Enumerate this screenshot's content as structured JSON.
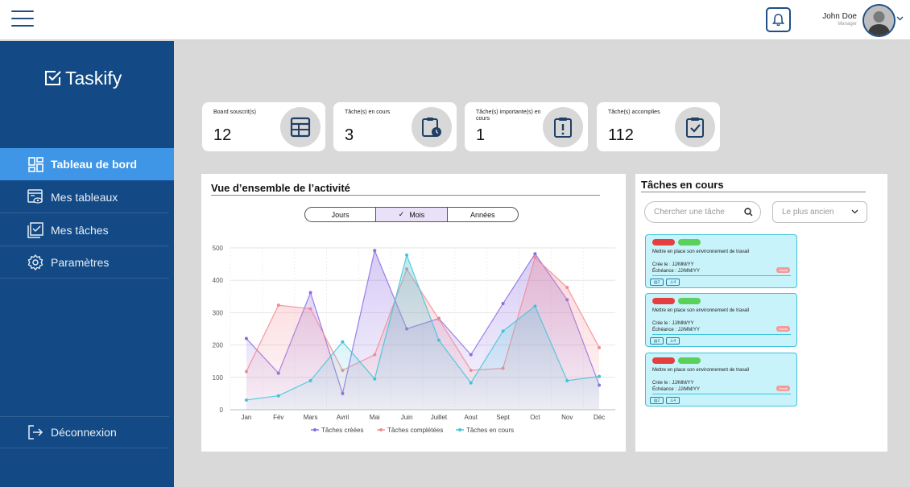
{
  "header": {
    "user_name": "John Doe",
    "user_role": "Manager"
  },
  "sidebar": {
    "logo_text": "Taskify",
    "items": [
      {
        "label": "Tableau de bord",
        "icon": "dashboard-icon",
        "active": true
      },
      {
        "label": "Mes tableaux",
        "icon": "boards-icon",
        "active": false
      },
      {
        "label": "Mes tâches",
        "icon": "tasks-icon",
        "active": false
      },
      {
        "label": "Paramètres",
        "icon": "gear-icon",
        "active": false
      }
    ],
    "logout_label": "Déconnexion"
  },
  "stats": [
    {
      "label": "Board souscrit(s)",
      "value": "12",
      "icon": "table-icon"
    },
    {
      "label": "Tâche(s) en cours",
      "value": "3",
      "icon": "clipboard-clock-icon"
    },
    {
      "label": "Tâche(s) importante(s) en cours",
      "value": "1",
      "icon": "alert-icon"
    },
    {
      "label": "Tâche(s) accomplies",
      "value": "112",
      "icon": "clipboard-check-icon"
    }
  ],
  "activity": {
    "title": "Vue d’ensemble de l’activité",
    "segments": [
      "Jours",
      "Mois",
      "Années"
    ],
    "selected_segment": "Mois",
    "checkmark": "✓"
  },
  "chart_data": {
    "type": "area",
    "title": "",
    "xlabel": "",
    "ylabel": "",
    "ylim": [
      0,
      500
    ],
    "yticks": [
      0,
      100,
      200,
      300,
      400,
      500
    ],
    "grid": true,
    "legend_position": "bottom",
    "categories": [
      "Jan",
      "Fév",
      "Mars",
      "Avril",
      "Mai",
      "Juin",
      "Juillet",
      "Aout",
      "Sept",
      "Oct",
      "Nov",
      "Déc"
    ],
    "series": [
      {
        "name": "Tâches créées",
        "color": "#8c6be2",
        "values": [
          220,
          113,
          362,
          50,
          492,
          250,
          282,
          170,
          328,
          482,
          340,
          76
        ]
      },
      {
        "name": "Tâches complétées",
        "color": "#f28a94",
        "values": [
          118,
          323,
          312,
          122,
          170,
          435,
          280,
          122,
          128,
          470,
          378,
          192
        ]
      },
      {
        "name": "Tâches en cours",
        "color": "#3fc4d9",
        "values": [
          30,
          43,
          90,
          210,
          95,
          478,
          215,
          83,
          243,
          320,
          90,
          103
        ]
      }
    ]
  },
  "tasks_panel": {
    "title": "Tâches en cours",
    "search_placeholder": "Chercher une tâche",
    "sort_value": "Le plus ancien",
    "tasks": [
      {
        "description": "Mettre en place son environnement de travail",
        "created": "Crée le : JJ/MM/YY",
        "due": "Échéance : JJ/MM/YY",
        "badge": "Haute",
        "comments": "2",
        "members": "4"
      },
      {
        "description": "Mettre en place son environnement de travail",
        "created": "Crée le : JJ/MM/YY",
        "due": "Échéance : JJ/MM/YY",
        "badge": "Haute",
        "comments": "2",
        "members": "4"
      },
      {
        "description": "Mettre en place son environnement de travail",
        "created": "Crée le : JJ/MM/YY",
        "due": "Échéance : JJ/MM/YY",
        "badge": "Haute",
        "comments": "2",
        "members": "4"
      }
    ]
  }
}
